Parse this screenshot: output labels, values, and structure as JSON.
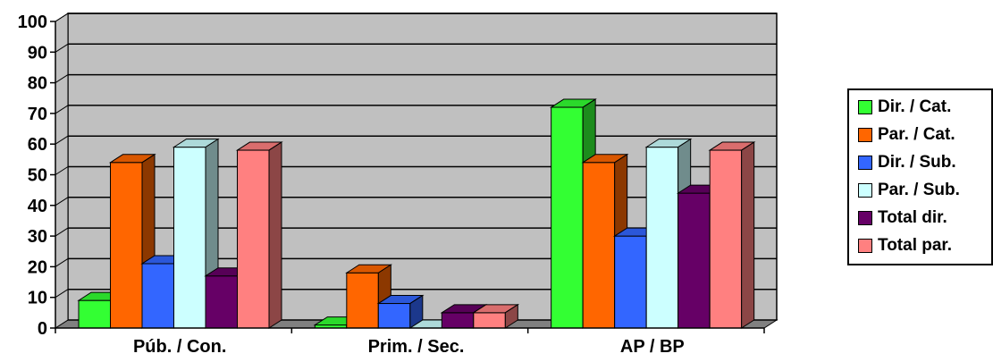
{
  "chart_data": {
    "type": "bar",
    "categories": [
      "Púb. / Con.",
      "Prim. / Sec.",
      "AP / BP"
    ],
    "y_ticks": [
      "0",
      "10",
      "20",
      "30",
      "40",
      "50",
      "60",
      "70",
      "80",
      "90",
      "100"
    ],
    "ylim": [
      0,
      100
    ],
    "grid": true,
    "legend_position": "right",
    "series": [
      {
        "name": "Dir. / Cat.",
        "color": "#33ff33",
        "values": [
          9,
          1,
          72
        ]
      },
      {
        "name": "Par. / Cat.",
        "color": "#ff6600",
        "values": [
          54,
          18,
          54
        ]
      },
      {
        "name": "Dir. / Sub.",
        "color": "#3366ff",
        "values": [
          21,
          8,
          30
        ]
      },
      {
        "name": "Par. / Sub.",
        "color": "#ccffff",
        "values": [
          59,
          0,
          59
        ]
      },
      {
        "name": "Total dir.",
        "color": "#660066",
        "values": [
          17,
          5,
          44
        ]
      },
      {
        "name": "Total par.",
        "color": "#ff8080",
        "values": [
          58,
          5,
          58
        ]
      }
    ]
  }
}
